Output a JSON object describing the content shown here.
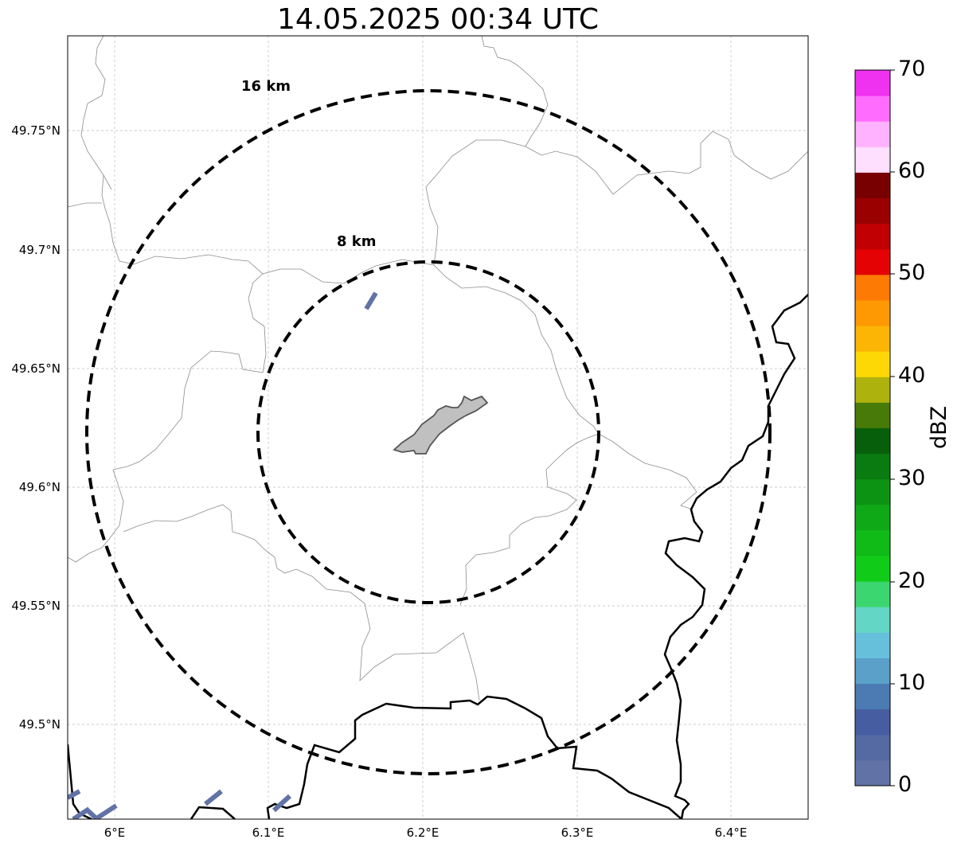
{
  "title": "14.05.2025 00:34 UTC",
  "map": {
    "lat_ticks": [
      "49.75°N",
      "49.7°N",
      "49.65°N",
      "49.6°N",
      "49.55°N",
      "49.5°N"
    ],
    "lon_ticks": [
      "6°E",
      "6.1°E",
      "6.2°E",
      "6.3°E",
      "6.4°E"
    ],
    "extent": {
      "lon": [
        5.97,
        6.45
      ],
      "lat": [
        49.46,
        49.79
      ]
    },
    "gridlines": true,
    "range_rings": [
      {
        "label": "8 km",
        "radius_km": 8
      },
      {
        "label": "16 km",
        "radius_km": 16
      }
    ],
    "radar_center": {
      "lon": 6.203,
      "lat": 49.623
    },
    "features": [
      "country-border",
      "municipal-boundaries",
      "city-area",
      "echo-speckles"
    ]
  },
  "colorbar": {
    "label": "dBZ",
    "ticks": [
      "0",
      "10",
      "20",
      "30",
      "40",
      "50",
      "60",
      "70"
    ],
    "range": [
      0,
      70
    ],
    "step": 2.5,
    "colors": [
      "#6173a6",
      "#5569a3",
      "#465ea1",
      "#4c7ab3",
      "#5aa0c8",
      "#66c0dc",
      "#63d6c6",
      "#3cd670",
      "#10cc18",
      "#10bb18",
      "#0fa918",
      "#0c9314",
      "#0a7b10",
      "#075f0c",
      "#477a09",
      "#adb20d",
      "#fed805",
      "#fdb505",
      "#fe9904",
      "#fd7b04",
      "#e40204",
      "#c00002",
      "#9a0000",
      "#780000",
      "#ffdefe",
      "#ffb2fe",
      "#ff6cfe",
      "#ef32ef"
    ]
  }
}
